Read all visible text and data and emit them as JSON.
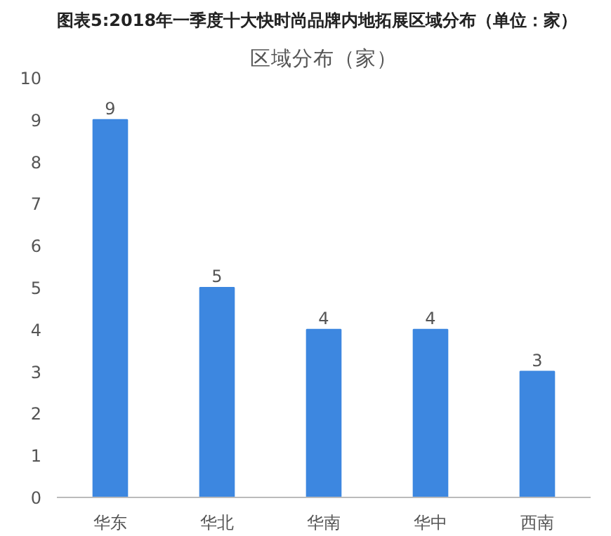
{
  "chart_data": {
    "type": "bar",
    "title": "图表5:2018年一季度十大快时尚品牌内地拓展区域分布（单位：家）",
    "subtitle": "区域分布（家）",
    "categories": [
      "华东",
      "华北",
      "华南",
      "华中",
      "西南"
    ],
    "values": [
      9,
      5,
      4,
      4,
      3
    ],
    "color": "#3d87e0",
    "ylim": [
      0,
      10
    ],
    "yticks": [
      0,
      1,
      2,
      3,
      4,
      5,
      6,
      7,
      8,
      9,
      10
    ],
    "grid": false,
    "data_labels": true
  }
}
